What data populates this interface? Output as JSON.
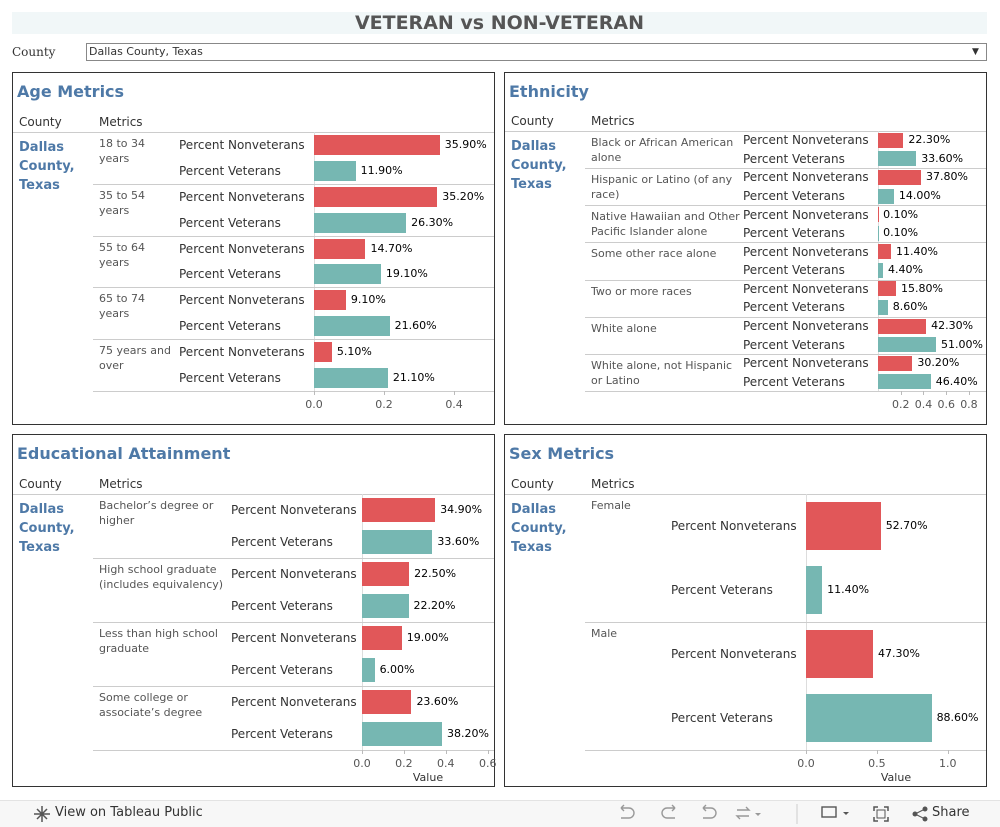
{
  "header": {
    "title": "VETERAN vs NON-VETERAN"
  },
  "filter": {
    "label": "County",
    "value": "Dallas County, Texas"
  },
  "footer": {
    "link": "View on Tableau Public",
    "share": "Share"
  },
  "chart_data": [
    {
      "type": "bar",
      "orientation": "horizontal",
      "title": "Age Metrics",
      "columns": [
        "County",
        "Metrics"
      ],
      "county": "Dallas County, Texas",
      "categories": [
        "18 to 34 years",
        "35 to 54 years",
        "55 to 64 years",
        "65 to 74 years",
        "75 years and over"
      ],
      "series": [
        {
          "name": "Percent Nonveterans",
          "color": "#e15759",
          "values": [
            0.359,
            0.352,
            0.147,
            0.091,
            0.051
          ],
          "value_labels": [
            "35.90%",
            "35.20%",
            "14.70%",
            "9.10%",
            "5.10%"
          ]
        },
        {
          "name": "Percent Veterans",
          "color": "#76b7b2",
          "values": [
            0.119,
            0.263,
            0.191,
            0.216,
            0.211
          ],
          "value_labels": [
            "11.90%",
            "26.30%",
            "19.10%",
            "21.60%",
            "21.10%"
          ]
        }
      ],
      "xlim": [
        0,
        0.514
      ],
      "xticks": [
        {
          "value": 0,
          "label": "0.0"
        },
        0.2,
        0.4
      ]
    },
    {
      "type": "bar",
      "orientation": "horizontal",
      "title": "Ethnicity",
      "columns": [
        "County",
        "Metrics"
      ],
      "county": "Dallas County, Texas",
      "categories": [
        "Black or African American alone",
        "Hispanic or Latino (of any race)",
        "Native Hawaiian and Other Pacific Islander alone",
        "Some other race alone",
        "Two or more races",
        "White alone",
        "White alone, not Hispanic or Latino"
      ],
      "series": [
        {
          "name": "Percent Nonveterans",
          "color": "#e15759",
          "values": [
            0.223,
            0.378,
            0.001,
            0.114,
            0.158,
            0.423,
            0.302
          ],
          "value_labels": [
            "22.30%",
            "37.80%",
            "0.10%",
            "11.40%",
            "15.80%",
            "42.30%",
            "30.20%"
          ]
        },
        {
          "name": "Percent Veterans",
          "color": "#76b7b2",
          "values": [
            0.336,
            0.14,
            0.001,
            0.044,
            0.086,
            0.51,
            0.464
          ],
          "value_labels": [
            "33.60%",
            "14.00%",
            "0.10%",
            "4.40%",
            "8.60%",
            "51.00%",
            "46.40%"
          ]
        }
      ],
      "xlim": [
        0,
        0.95
      ],
      "xticks": [
        0.2,
        0.4,
        0.6,
        0.8
      ]
    },
    {
      "type": "bar",
      "orientation": "horizontal",
      "title": "Educational Attainment",
      "columns": [
        "County",
        "Metrics"
      ],
      "county": "Dallas County, Texas",
      "categories": [
        "Bachelor’s degree or higher",
        "High school graduate (includes equivalency)",
        "Less than high school graduate",
        "Some college or associate’s degree"
      ],
      "series": [
        {
          "name": "Percent Nonveterans",
          "color": "#e15759",
          "values": [
            0.349,
            0.225,
            0.19,
            0.236
          ],
          "value_labels": [
            "34.90%",
            "22.50%",
            "19.00%",
            "23.60%"
          ]
        },
        {
          "name": "Percent Veterans",
          "color": "#76b7b2",
          "values": [
            0.336,
            0.222,
            0.06,
            0.382
          ],
          "value_labels": [
            "33.60%",
            "22.20%",
            "6.00%",
            "38.20%"
          ]
        }
      ],
      "xlim": [
        0,
        0.63
      ],
      "xticks": [
        {
          "value": 0,
          "label": "0.0"
        },
        0.2,
        0.4,
        0.6
      ],
      "xlabel": "Value"
    },
    {
      "type": "bar",
      "orientation": "horizontal",
      "title": "Sex Metrics",
      "columns": [
        "County",
        "Metrics"
      ],
      "county": "Dallas County, Texas",
      "categories": [
        "Female",
        "Male"
      ],
      "series": [
        {
          "name": "Percent Nonveterans",
          "color": "#e15759",
          "values": [
            0.527,
            0.473
          ],
          "value_labels": [
            "52.70%",
            "47.30%"
          ]
        },
        {
          "name": "Percent Veterans",
          "color": "#76b7b2",
          "values": [
            0.114,
            0.886
          ],
          "value_labels": [
            "11.40%",
            "88.60%"
          ]
        }
      ],
      "xlim": [
        0,
        1.27
      ],
      "xticks": [
        {
          "value": 0,
          "label": "0.0"
        },
        0.5,
        {
          "value": 1,
          "label": "1.0"
        }
      ],
      "xlabel": "Value"
    }
  ]
}
